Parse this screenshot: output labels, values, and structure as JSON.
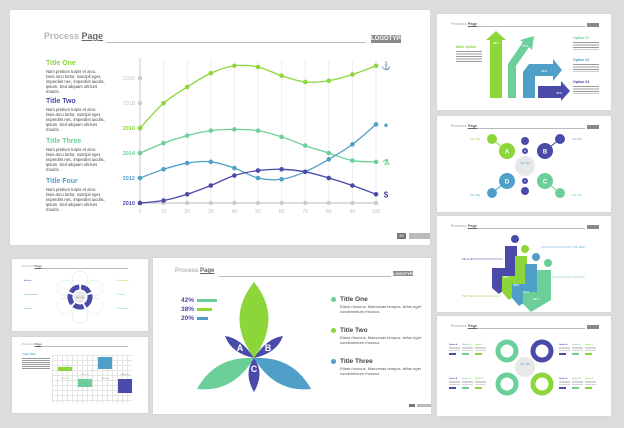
{
  "main_slide": {
    "header": {
      "title_light": "Process",
      "title_bold": "Page",
      "logo": "LOGOTYPE"
    },
    "page_number": "50",
    "items": [
      {
        "title": "Title One",
        "color": "#8cd63a",
        "body": "Nam pretium turpis et arcu. Duis arcu tortor, suscipit eget, imperdiet nec, imperdiet iaculis, ipsum. Sed aliquam ultrices mauris."
      },
      {
        "title": "Title Two",
        "color": "#4a4aa8",
        "body": "Nam pretium turpis et arcu. Duis arcu tortor, suscipit eget, imperdiet nec, imperdiet iaculis, ipsum. Sed aliquam ultrices mauris."
      },
      {
        "title": "Title Three",
        "color": "#6ccf9a",
        "body": "Nam pretium turpis et arcu. Duis arcu tortor, suscipit eget, imperdiet nec, imperdiet iaculis, ipsum. Sed aliquam ultrices mauris."
      },
      {
        "title": "Title Four",
        "color": "#4f9fc8",
        "body": "Nam pretium turpis et arcu. Duis arcu tortor, suscipit eget, imperdiet nec, imperdiet iaculis, ipsum. Sed aliquam ultrices mauris."
      }
    ],
    "y_ticks": [
      {
        "label": "2020",
        "color": "#c4c4c4"
      },
      {
        "label": "2018",
        "color": "#c4c4c4"
      },
      {
        "label": "2016",
        "color": "#8cd63a"
      },
      {
        "label": "2014",
        "color": "#6ccf9a"
      },
      {
        "label": "2012",
        "color": "#4f9fc8"
      },
      {
        "label": "2010",
        "color": "#4a4aa8"
      }
    ],
    "x_ticks": [
      "0",
      "10",
      "20",
      "30",
      "40",
      "50",
      "60",
      "70",
      "80",
      "90",
      "100"
    ],
    "end_icons": [
      "anchor-icon",
      "lightbulb-icon",
      "flask-icon",
      "money-bag-icon"
    ]
  },
  "chart_data": {
    "type": "line",
    "title": "Process Page",
    "xlabel": "",
    "ylabel": "",
    "x": [
      0,
      10,
      20,
      30,
      40,
      50,
      60,
      70,
      80,
      90,
      100
    ],
    "y_tick_labels": [
      "2010",
      "2012",
      "2014",
      "2016",
      "2018",
      "2020"
    ],
    "ylim": [
      2010,
      2022
    ],
    "grid": "vertical",
    "series": [
      {
        "name": "Title One",
        "color": "#8cd63a",
        "values": [
          2016.0,
          2018.0,
          2019.3,
          2020.4,
          2021.0,
          2020.9,
          2020.2,
          2019.7,
          2019.8,
          2020.3,
          2021.0
        ]
      },
      {
        "name": "Title Three",
        "color": "#6ccf9a",
        "values": [
          2014.0,
          2014.8,
          2015.4,
          2015.8,
          2015.9,
          2015.8,
          2015.3,
          2014.6,
          2014.0,
          2013.4,
          2013.3
        ]
      },
      {
        "name": "Title Four",
        "color": "#4f9fc8",
        "values": [
          2012.0,
          2012.7,
          2013.2,
          2013.3,
          2012.8,
          2012.0,
          2011.9,
          2012.5,
          2013.5,
          2014.7,
          2016.3
        ]
      },
      {
        "name": "Title Two",
        "color": "#4a4aa8",
        "values": [
          2010.0,
          2010.2,
          2010.7,
          2011.4,
          2012.2,
          2012.6,
          2012.7,
          2012.5,
          2012.0,
          2011.4,
          2010.7
        ]
      }
    ]
  },
  "arrow_slide": {
    "header": {
      "title_light": "Process",
      "title_bold": "Page"
    },
    "main_option": "Main Option",
    "options": [
      "Option 01",
      "Option 02",
      "Option 03"
    ],
    "arrows": [
      {
        "pct": "88%",
        "color": "#8cd63a"
      },
      {
        "pct": "65%",
        "color": "#6ccf9a"
      },
      {
        "pct": "38%",
        "color": "#4f9fc8"
      },
      {
        "pct": "45%",
        "color": "#4a4aa8"
      }
    ]
  },
  "abcd_slide": {
    "header": {
      "title_light": "Process",
      "title_bold": "Page"
    },
    "center_title": "Your Title",
    "nodes": [
      {
        "letter": "A",
        "color": "#8cd63a"
      },
      {
        "letter": "B",
        "color": "#4a4aa8"
      },
      {
        "letter": "C",
        "color": "#6ccf9a"
      },
      {
        "letter": "D",
        "color": "#4f9fc8"
      },
      {
        "letter": "E",
        "color": "#4a4aa8"
      },
      {
        "letter": "F",
        "color": "#4a4aa8"
      }
    ],
    "side_titles": [
      "Your Title",
      "Your Title",
      "Your Title",
      "Your Title"
    ]
  },
  "stairs_slide": {
    "header": {
      "title_light": "Process",
      "title_bold": "Page"
    },
    "steps": [
      {
        "pct": "38%",
        "color": "#4a4aa8"
      },
      {
        "pct": "48%",
        "color": "#8cd63a"
      },
      {
        "pct": "64%",
        "color": "#4f9fc8"
      },
      {
        "pct": "65%",
        "color": "#6ccf9a"
      }
    ],
    "labels": [
      "Title Four",
      "Title Three",
      "Title Three",
      "Title Two"
    ]
  },
  "rings_slide": {
    "header": {
      "title_light": "Process",
      "title_bold": "Page"
    },
    "center_title": "Your Title",
    "options_left_top": [
      "Option A",
      "Option B",
      "Option C"
    ],
    "options_left_bottom": [
      "Option A",
      "Option B",
      "Option C"
    ],
    "options_right_top": [
      "Option A",
      "Option B",
      "Option C"
    ],
    "options_right_bottom": [
      "Option A",
      "Option B",
      "Option C"
    ]
  },
  "petal_slide": {
    "header": {
      "title_light": "Process",
      "title_bold": "Page",
      "logo": "LOGOTYPE"
    },
    "bars": [
      {
        "pct": "42%",
        "color": "#6ccf9a",
        "width": 20
      },
      {
        "pct": "38%",
        "color": "#8cd63a",
        "width": 15
      },
      {
        "pct": "20%",
        "color": "#4f9fc8",
        "width": 11
      }
    ],
    "petals": [
      "A",
      "B",
      "C"
    ],
    "legend": [
      {
        "title": "Title One",
        "color": "#6ccf9a",
        "body": "Etiam rhoncus. Maecenas tempus, tellus eget condimentum rhoncus"
      },
      {
        "title": "Title Two",
        "color": "#8cd63a",
        "body": "Etiam rhoncus. Maecenas tempus, tellus eget condimentum rhoncus"
      },
      {
        "title": "Title Three",
        "color": "#4f9fc8",
        "body": "Etiam rhoncus. Maecenas tempus, tellus eget condimentum rhoncus"
      }
    ]
  },
  "flower_slide": {
    "header": {
      "title_light": "Process",
      "title_bold": "Page"
    },
    "center_title": "Your Title",
    "left_titles": [
      "Analysis",
      "Implementation",
      "Strategy"
    ],
    "right_titles": [
      "Development",
      "Planning",
      "Management"
    ]
  },
  "grid_slide": {
    "header": {
      "title_light": "Process",
      "title_bold": "Page"
    },
    "title": "Your Title",
    "card_titles": [
      "Title Two",
      "Title Two",
      "Title Two",
      "Title Two"
    ]
  }
}
